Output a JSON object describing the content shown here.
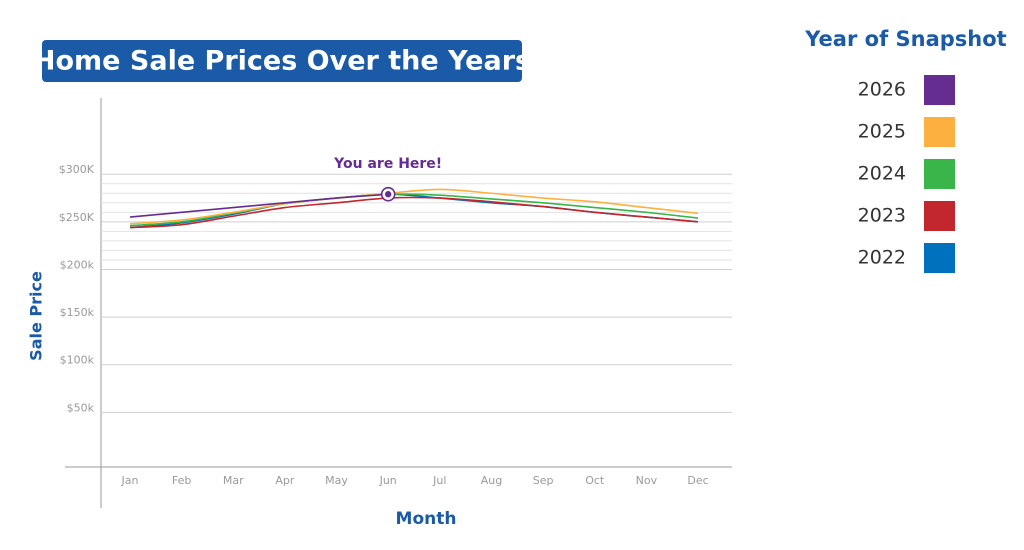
{
  "chart_data": {
    "type": "line",
    "title": "Home Sale Prices Over the Years",
    "x_label": "Month",
    "y_label": "Sale Price",
    "legend_title": "Year of Snapshot",
    "legend_position": "right",
    "annotation": {
      "text": "You are Here!",
      "category_index": 5,
      "series_index": 0
    },
    "categories": [
      "Jan",
      "Feb",
      "Mar",
      "Apr",
      "May",
      "Jun",
      "Jul",
      "Aug",
      "Sep",
      "Oct",
      "Nov",
      "Dec"
    ],
    "series": [
      {
        "name": "2026",
        "color": "#662d91",
        "values": [
          255000,
          260000,
          265000,
          270000,
          275000,
          279000,
          null,
          null,
          null,
          null,
          null,
          null
        ]
      },
      {
        "name": "2025",
        "color": "#fbb040",
        "values": [
          248000,
          252000,
          260000,
          269000,
          275000,
          280000,
          284000,
          280000,
          275000,
          271000,
          265000,
          259000
        ]
      },
      {
        "name": "2024",
        "color": "#39b54a",
        "values": [
          246000,
          250000,
          259000,
          269000,
          275000,
          279000,
          278000,
          274000,
          270000,
          265000,
          260000,
          254000
        ]
      },
      {
        "name": "2023",
        "color": "#c1272d",
        "values": [
          244000,
          247000,
          256000,
          265000,
          270000,
          275000,
          275000,
          271000,
          266000,
          260000,
          255000,
          250000
        ]
      },
      {
        "name": "2022",
        "color": "#0071bc",
        "values": [
          244000,
          249000,
          258000,
          269000,
          275000,
          279000,
          275000,
          270000,
          266000,
          260000,
          255000,
          250000
        ]
      }
    ],
    "ylim": [
      0,
      380000
    ],
    "yticks": [
      {
        "value": 50000,
        "label": "$50k"
      },
      {
        "value": 100000,
        "label": "$100k"
      },
      {
        "value": 150000,
        "label": "$150k"
      },
      {
        "value": 200000,
        "label": "$200k"
      },
      {
        "value": 250000,
        "label": "$250K"
      },
      {
        "value": 300000,
        "label": "$300K"
      }
    ],
    "minor_yticks": [
      210000,
      220000,
      230000,
      240000,
      260000,
      270000,
      280000,
      290000
    ],
    "grid": true
  }
}
